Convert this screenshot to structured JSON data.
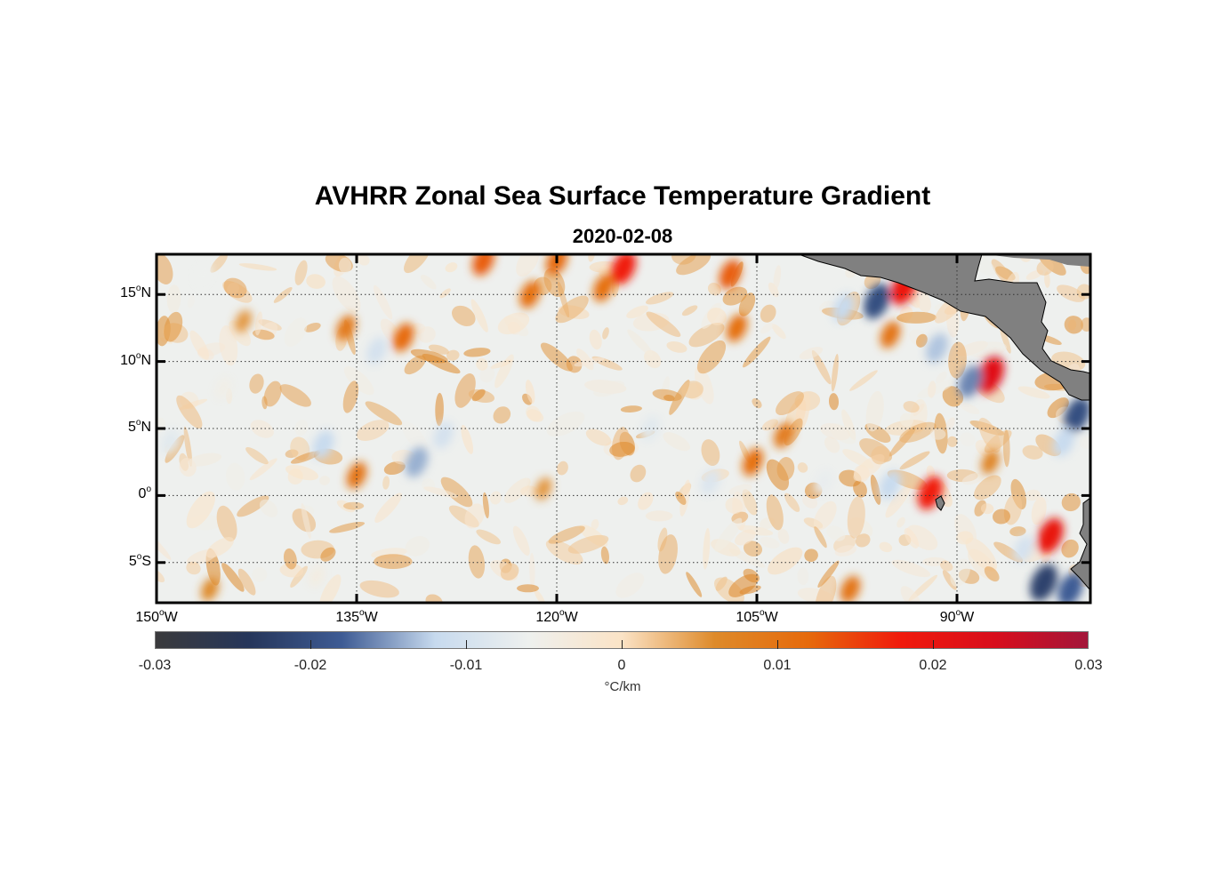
{
  "title": "AVHRR Zonal Sea Surface Temperature Gradient",
  "subtitle": "2020-02-08",
  "map": {
    "lat_range": [
      -8,
      18
    ],
    "lon_range": [
      -150,
      -80
    ],
    "lat_ticks": [
      {
        "value": 15,
        "num": "15",
        "deg": "o",
        "hemi": "N"
      },
      {
        "value": 10,
        "num": "10",
        "deg": "o",
        "hemi": "N"
      },
      {
        "value": 5,
        "num": "5",
        "deg": "o",
        "hemi": "N"
      },
      {
        "value": 0,
        "num": "0",
        "deg": "o",
        "hemi": ""
      },
      {
        "value": -5,
        "num": "5",
        "deg": "o",
        "hemi": "S"
      }
    ],
    "lon_ticks": [
      {
        "value": -150,
        "num": "150",
        "deg": "o",
        "hemi": "W"
      },
      {
        "value": -135,
        "num": "135",
        "deg": "o",
        "hemi": "W"
      },
      {
        "value": -120,
        "num": "120",
        "deg": "o",
        "hemi": "W"
      },
      {
        "value": -105,
        "num": "105",
        "deg": "o",
        "hemi": "W"
      },
      {
        "value": -90,
        "num": "90",
        "deg": "o",
        "hemi": "W"
      }
    ],
    "land_color": "#808080",
    "grid": true
  },
  "colorbar": {
    "ticks": [
      "-0.03",
      "-0.02",
      "-0.01",
      "0",
      "0.01",
      "0.02",
      "0.03"
    ],
    "units": "°C/km",
    "colors": [
      "#3a3a3c",
      "#26365a",
      "#3e5b94",
      "#c7daee",
      "#eef0ee",
      "#fbe3c6",
      "#de8a2a",
      "#e66a0c",
      "#f01a0c",
      "#d80d1c",
      "#a3163a"
    ]
  },
  "features": [
    {
      "lon": -146.5,
      "lat": 16.5,
      "value": -0.006
    },
    {
      "lon": -143.5,
      "lat": 13.0,
      "value": 0.005
    },
    {
      "lon": -135.8,
      "lat": 12.5,
      "value": 0.009
    },
    {
      "lon": -133.5,
      "lat": 10.8,
      "value": -0.01
    },
    {
      "lon": -131.5,
      "lat": 11.8,
      "value": 0.012
    },
    {
      "lon": -137.5,
      "lat": 3.8,
      "value": -0.012
    },
    {
      "lon": -135.0,
      "lat": 1.5,
      "value": 0.01
    },
    {
      "lon": -130.5,
      "lat": 2.5,
      "value": -0.014
    },
    {
      "lon": -128.5,
      "lat": 4.5,
      "value": -0.01
    },
    {
      "lon": -149.0,
      "lat": 4.0,
      "value": -0.008
    },
    {
      "lon": -145.0,
      "lat": 8.0,
      "value": -0.005
    },
    {
      "lon": -125.5,
      "lat": 17.5,
      "value": 0.013
    },
    {
      "lon": -122.0,
      "lat": 15.0,
      "value": 0.011
    },
    {
      "lon": -120.0,
      "lat": 17.5,
      "value": 0.012
    },
    {
      "lon": -115.0,
      "lat": 17.0,
      "value": 0.018
    },
    {
      "lon": -116.5,
      "lat": 15.5,
      "value": 0.011
    },
    {
      "lon": -107.0,
      "lat": 16.5,
      "value": 0.013
    },
    {
      "lon": -106.5,
      "lat": 12.5,
      "value": 0.011
    },
    {
      "lon": -113.0,
      "lat": 5.0,
      "value": -0.008
    },
    {
      "lon": -103.0,
      "lat": 4.5,
      "value": 0.009
    },
    {
      "lon": -105.3,
      "lat": 2.5,
      "value": 0.011
    },
    {
      "lon": -108.5,
      "lat": 1.0,
      "value": -0.009
    },
    {
      "lon": -100.0,
      "lat": 1.0,
      "value": -0.007
    },
    {
      "lon": -96.0,
      "lat": 14.5,
      "value": -0.02
    },
    {
      "lon": -94.0,
      "lat": 15.5,
      "value": 0.019
    },
    {
      "lon": -98.5,
      "lat": 14.0,
      "value": -0.012
    },
    {
      "lon": -95.0,
      "lat": 12.0,
      "value": 0.01
    },
    {
      "lon": -91.5,
      "lat": 11.0,
      "value": -0.013
    },
    {
      "lon": -87.5,
      "lat": 9.0,
      "value": 0.022
    },
    {
      "lon": -89.0,
      "lat": 8.5,
      "value": -0.016
    },
    {
      "lon": -81.0,
      "lat": 6.0,
      "value": -0.02
    },
    {
      "lon": -82.0,
      "lat": 4.0,
      "value": -0.012
    },
    {
      "lon": -92.0,
      "lat": 0.2,
      "value": 0.018
    },
    {
      "lon": -95.0,
      "lat": 0.8,
      "value": -0.012
    },
    {
      "lon": -83.0,
      "lat": -3.0,
      "value": 0.02
    },
    {
      "lon": -83.5,
      "lat": -6.5,
      "value": -0.022
    },
    {
      "lon": -81.5,
      "lat": -7.0,
      "value": -0.018
    },
    {
      "lon": -87.5,
      "lat": 2.5,
      "value": 0.007
    },
    {
      "lon": -85.0,
      "lat": -4.0,
      "value": -0.01
    },
    {
      "lon": -146.0,
      "lat": -7.0,
      "value": 0.006
    },
    {
      "lon": -138.0,
      "lat": -6.0,
      "value": -0.004
    },
    {
      "lon": -121.0,
      "lat": 0.5,
      "value": 0.005
    },
    {
      "lon": -98.0,
      "lat": -7.0,
      "value": 0.01
    }
  ]
}
